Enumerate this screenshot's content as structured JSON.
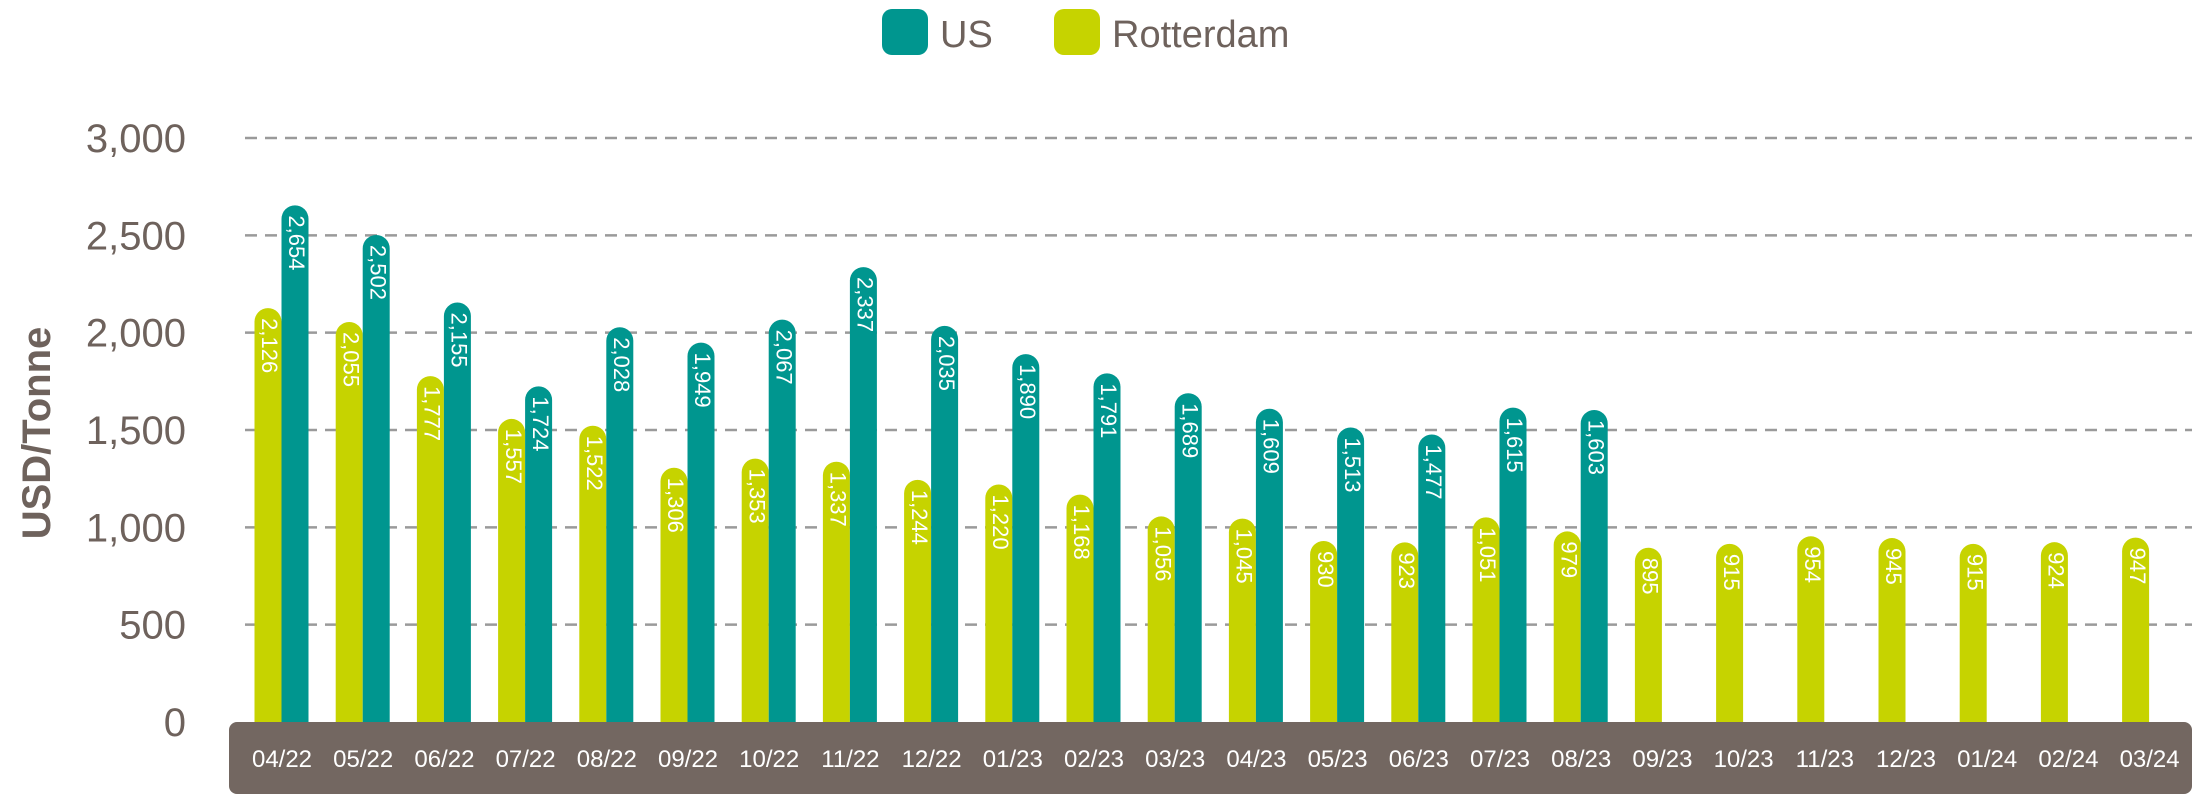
{
  "chart_data": {
    "type": "bar",
    "ylabel": "USD/Tonne",
    "xlabel": "",
    "title": "",
    "ylim": [
      0,
      3000
    ],
    "yticks": [
      0,
      500,
      1000,
      1500,
      2000,
      2500,
      3000
    ],
    "ytick_labels": [
      "0",
      "500",
      "1,000",
      "1,500",
      "2,000",
      "2,500",
      "3,000"
    ],
    "grid": "horizontal-dashed",
    "legend_position": "top-center",
    "categories": [
      "04/22",
      "05/22",
      "06/22",
      "07/22",
      "08/22",
      "09/22",
      "10/22",
      "11/22",
      "12/22",
      "01/23",
      "02/23",
      "03/23",
      "04/23",
      "05/23",
      "06/23",
      "07/23",
      "08/23",
      "09/23",
      "10/23",
      "11/23",
      "12/23",
      "01/24",
      "02/24",
      "03/24"
    ],
    "series": [
      {
        "name": "US",
        "color": "#00968f",
        "values": [
          2654,
          2502,
          2155,
          1724,
          2028,
          1949,
          2067,
          2337,
          2035,
          1890,
          1791,
          1689,
          1609,
          1513,
          1477,
          1615,
          1603,
          null,
          null,
          null,
          null,
          null,
          null,
          null
        ],
        "labels": [
          "2,654",
          "2,502",
          "2,155",
          "1,724",
          "2,028",
          "1,949",
          "2,067",
          "2,337",
          "2,035",
          "1,890",
          "1,791",
          "1,689",
          "1,609",
          "1,513",
          "1,477",
          "1,615",
          "1,603",
          "",
          "",
          "",
          "",
          "",
          "",
          ""
        ]
      },
      {
        "name": "Rotterdam",
        "color": "#c6d300",
        "values": [
          2126,
          2055,
          1777,
          1557,
          1522,
          1306,
          1353,
          1337,
          1244,
          1220,
          1168,
          1056,
          1045,
          930,
          923,
          1051,
          979,
          895,
          915,
          954,
          945,
          915,
          924,
          947
        ],
        "labels": [
          "2,126",
          "2,055",
          "1,777",
          "1,557",
          "1,522",
          "1,306",
          "1,353",
          "1,337",
          "1,244",
          "1,220",
          "1,168",
          "1,056",
          "1,045",
          "930",
          "923",
          "1,051",
          "979",
          "895",
          "915",
          "954",
          "945",
          "915",
          "924",
          "947"
        ]
      }
    ]
  }
}
